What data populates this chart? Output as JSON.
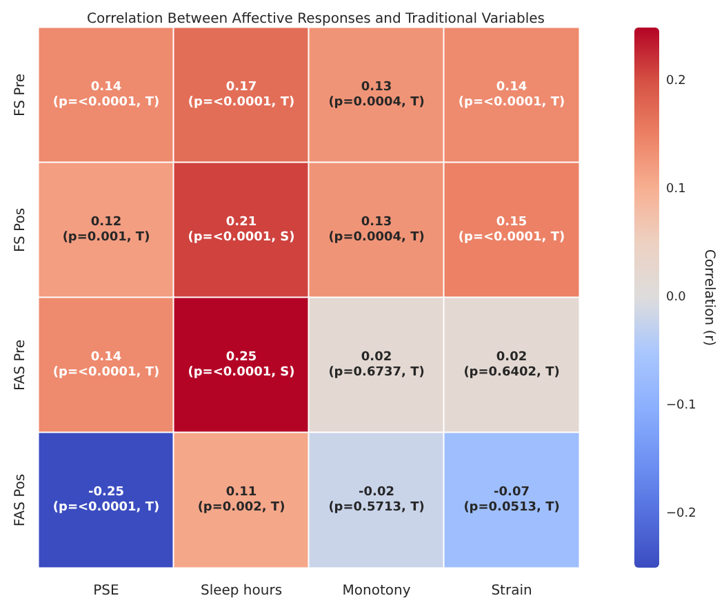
{
  "chart_data": {
    "type": "heatmap",
    "title": "Correlation Between Affective Responses and Traditional Variables",
    "categories": [
      "PSE",
      "Sleep hours",
      "Monotony",
      "Strain"
    ],
    "y_categories": [
      "FS Pre",
      "FS Pos",
      "FAS Pre",
      "FAS Pos"
    ],
    "cells": [
      [
        0.14,
        0.17,
        0.13,
        0.14
      ],
      [
        0.12,
        0.21,
        0.13,
        0.15
      ],
      [
        0.14,
        0.25,
        0.02,
        0.02
      ],
      [
        -0.25,
        0.11,
        -0.02,
        -0.07
      ]
    ],
    "cell_labels": [
      [
        "0.14\n(p=<0.0001, T)",
        "0.17\n(p=<0.0001, T)",
        "0.13\n(p=0.0004, T)",
        "0.14\n(p=<0.0001, T)"
      ],
      [
        "0.12\n(p=0.001, T)",
        "0.21\n(p=<0.0001, S)",
        "0.13\n(p=0.0004, T)",
        "0.15\n(p=<0.0001, T)"
      ],
      [
        "0.14\n(p=<0.0001, T)",
        "0.25\n(p=<0.0001, S)",
        "0.02\n(p=0.6737, T)",
        "0.02\n(p=0.6402, T)"
      ],
      [
        "-0.25\n(p=<0.0001, T)",
        "0.11\n(p=0.002, T)",
        "-0.02\n(p=0.5713, T)",
        "-0.07\n(p=0.0513, T)"
      ]
    ],
    "clabel": "Correlation (r)",
    "clim": [
      -0.25,
      0.25
    ],
    "cticks": [
      {
        "value": -0.2,
        "label": "−0.2"
      },
      {
        "value": -0.1,
        "label": "−0.1"
      },
      {
        "value": 0,
        "label": "0.0"
      },
      {
        "value": 0.1,
        "label": "0.1"
      },
      {
        "value": 0.2,
        "label": "0.2"
      }
    ]
  }
}
